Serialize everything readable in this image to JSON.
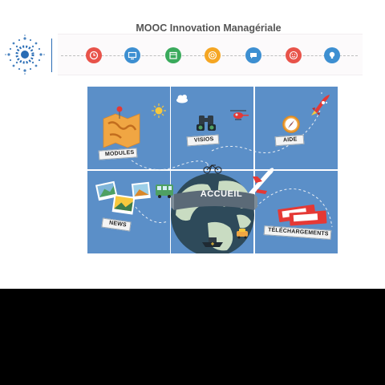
{
  "header": {
    "site_title": "MOOC Innovation Managériale"
  },
  "logo": {
    "icon": "gear-dots-icon",
    "color": "#2a6db5"
  },
  "nav": {
    "icons": [
      {
        "name": "clock-icon",
        "color": "#e8534a"
      },
      {
        "name": "monitor-icon",
        "color": "#3d8fd1"
      },
      {
        "name": "calendar-icon",
        "color": "#3aaa5c"
      },
      {
        "name": "target-icon",
        "color": "#f5a623"
      },
      {
        "name": "chat-icon",
        "color": "#3d8fd1"
      },
      {
        "name": "smiley-icon",
        "color": "#e8534a"
      },
      {
        "name": "bulb-icon",
        "color": "#3d8fd1"
      }
    ]
  },
  "tiles": {
    "modules": "MODULES",
    "visios": "VISIOS",
    "aide": "AIDE",
    "news": "NEWS",
    "accueil": "ACCUEIL",
    "telechargements": "TÉLÉCHARGEMENTS"
  },
  "colors": {
    "tile_blue": "#5b8fc8",
    "globe_dark": "#2e4a5a",
    "globe_green": "#c9dcc2"
  }
}
